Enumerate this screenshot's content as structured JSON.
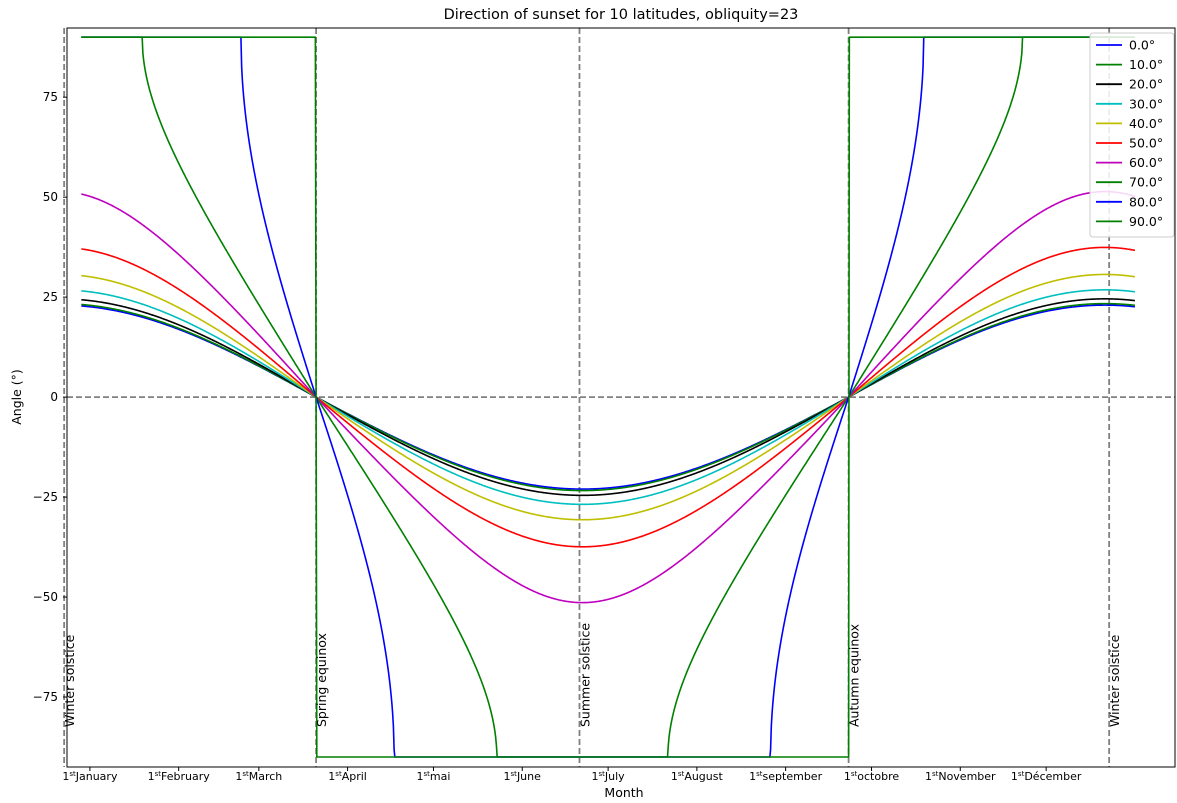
{
  "chart_data": {
    "type": "line",
    "title": "Direction of sunset for 10 latitudes, obliquity=23",
    "xlabel": "Month",
    "ylabel": "Angle (°)",
    "x_unit": "day of year",
    "xlim": [
      -8,
      379
    ],
    "ylim": [
      -92.5,
      92.3
    ],
    "yticks": [
      -75,
      -50,
      -25,
      0,
      25,
      50,
      75
    ],
    "ytick_labels": [
      "−75",
      "−50",
      "−25",
      "0",
      "25",
      "50",
      "75"
    ],
    "xticks": [
      {
        "x": 0,
        "sup": "st",
        "label": "January"
      },
      {
        "x": 31,
        "sup": "st",
        "label": "February"
      },
      {
        "x": 59,
        "sup": "st",
        "label": "March"
      },
      {
        "x": 90,
        "sup": "st",
        "label": "April"
      },
      {
        "x": 120,
        "sup": "st",
        "label": "mai"
      },
      {
        "x": 151,
        "sup": "st",
        "label": "June"
      },
      {
        "x": 181,
        "sup": "st",
        "label": "July"
      },
      {
        "x": 212,
        "sup": "st",
        "label": "August"
      },
      {
        "x": 243,
        "sup": "st",
        "label": "september"
      },
      {
        "x": 273,
        "sup": "st",
        "label": "octobre"
      },
      {
        "x": 304,
        "sup": "st",
        "label": "November"
      },
      {
        "x": 334,
        "sup": "st",
        "label": "Décember"
      }
    ],
    "reference_lines": {
      "vertical": [
        {
          "x": -9,
          "label": "Winter solstice"
        },
        {
          "x": 79,
          "label": "Spring equinox"
        },
        {
          "x": 171,
          "label": "Summer solstice"
        },
        {
          "x": 265,
          "label": "Autumn equinox"
        },
        {
          "x": 356,
          "label": "Winter solstice"
        }
      ],
      "horizontal": [
        0
      ],
      "color": "#808080",
      "style": "dashed"
    },
    "legend_position": "top-right",
    "obliquity": 23,
    "day_range": [
      -3,
      365
    ],
    "spring_equinox_day": 79,
    "autumn_equinox_day": 265,
    "solstice_day": 171,
    "year_length": 365,
    "series": [
      {
        "name": "0.0°",
        "latitude": 0,
        "color": "#0000ff"
      },
      {
        "name": "10.0°",
        "latitude": 10,
        "color": "#008000"
      },
      {
        "name": "20.0°",
        "latitude": 20,
        "color": "#000000"
      },
      {
        "name": "30.0°",
        "latitude": 30,
        "color": "#00bfbf"
      },
      {
        "name": "40.0°",
        "latitude": 40,
        "color": "#bfbf00"
      },
      {
        "name": "50.0°",
        "latitude": 50,
        "color": "#ff0000"
      },
      {
        "name": "60.0°",
        "latitude": 60,
        "color": "#bf00bf"
      },
      {
        "name": "70.0°",
        "latitude": 70,
        "color": "#008000"
      },
      {
        "name": "80.0°",
        "latitude": 80,
        "color": "#0000ff"
      },
      {
        "name": "90.0°",
        "latitude": 90,
        "color": "#008000"
      }
    ]
  }
}
